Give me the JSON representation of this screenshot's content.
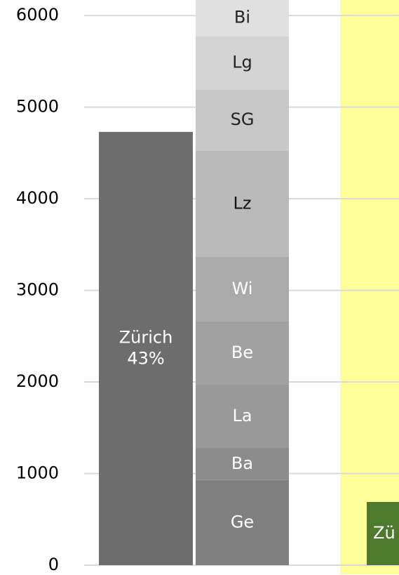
{
  "chart_data": {
    "type": "bar",
    "ylim": [
      0,
      6170
    ],
    "yticks": [
      0,
      1000,
      2000,
      3000,
      4000,
      5000,
      6000
    ],
    "grid": true,
    "bars": [
      {
        "segments": [
          {
            "label": [
              "Zürich",
              "43%"
            ],
            "value": 4730,
            "color": "#6d6d6d",
            "text_color": "#ffffff"
          }
        ]
      },
      {
        "segments": [
          {
            "label": [
              "Ge"
            ],
            "value": 930,
            "color": "#808080",
            "text_color": "#ffffff"
          },
          {
            "label": [
              "Ba"
            ],
            "value": 350,
            "color": "#8c8c8c",
            "text_color": "#ffffff"
          },
          {
            "label": [
              "La"
            ],
            "value": 690,
            "color": "#999999",
            "text_color": "#ffffff"
          },
          {
            "label": [
              "Be"
            ],
            "value": 690,
            "color": "#a1a1a1",
            "text_color": "#ffffff"
          },
          {
            "label": [
              "Wi"
            ],
            "value": 705,
            "color": "#aaaaaa",
            "text_color": "#ffffff"
          },
          {
            "label": [
              "Lz"
            ],
            "value": 1160,
            "color": "#bababa",
            "text_color": "#111111"
          },
          {
            "label": [
              "SG"
            ],
            "value": 667,
            "color": "#c8c8c8",
            "text_color": "#222222"
          },
          {
            "label": [
              "Lg"
            ],
            "value": 582,
            "color": "#d4d4d4",
            "text_color": "#222222"
          },
          {
            "label": [
              "Bi"
            ],
            "value": 400,
            "color": "#e0e0e0",
            "text_color": "#222222"
          }
        ]
      },
      {
        "highlight": "#ffff99",
        "segments": [
          {
            "label": [
              "Zü"
            ],
            "value": 690,
            "color": "#4e7a2e",
            "text_color": "#ffffff"
          }
        ]
      }
    ]
  }
}
